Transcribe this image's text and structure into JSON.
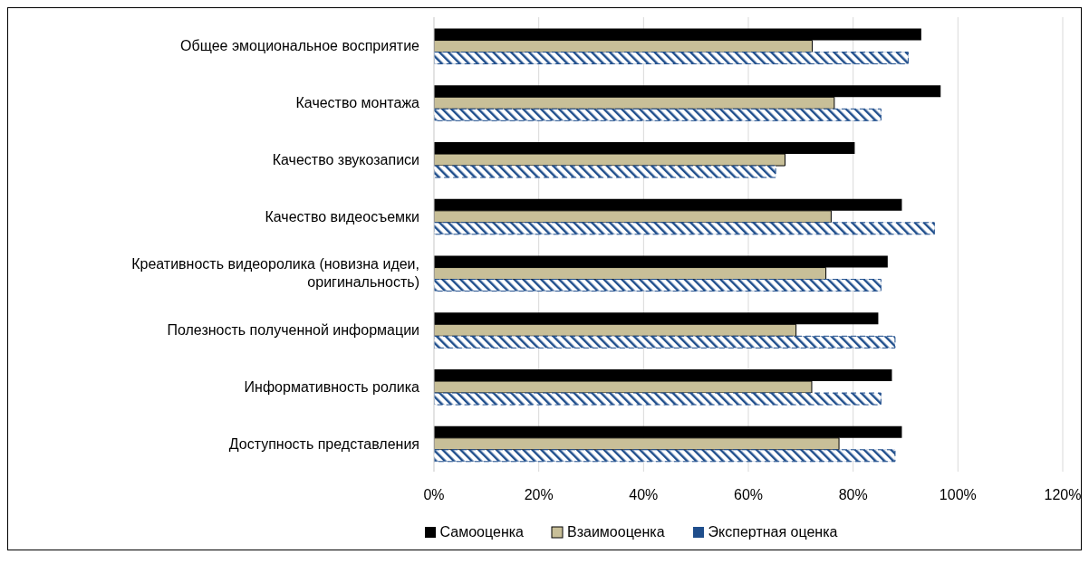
{
  "chart_data": {
    "type": "bar",
    "orientation": "horizontal",
    "categories": [
      "Общее эмоциональное восприятие",
      "Качество монтажа",
      "Качество звукозаписи",
      "Качество видеосъемки",
      "Креативность видеоролика (новизна идеи, оригинальность)",
      "Полезность полученной информации",
      "Информативность ролика",
      "Доступность представления"
    ],
    "series": [
      {
        "name": "Самооценка",
        "color": "#000000",
        "values": [
          93,
          96.7,
          80.3,
          89.3,
          86.6,
          84.8,
          87.4,
          89.3
        ]
      },
      {
        "name": "Взаимооценка",
        "color": "#c8bf98",
        "values": [
          72.2,
          76.4,
          67,
          75.8,
          74.8,
          69.1,
          72.1,
          77.3
        ]
      },
      {
        "name": "Экспертная оценка",
        "color": "#1f4e8c",
        "values": [
          90.5,
          85.3,
          65.2,
          95.5,
          85.3,
          88,
          85.3,
          88
        ]
      }
    ],
    "xlim": [
      0,
      120
    ],
    "xticks": [
      {
        "value": 0,
        "label": "0%"
      },
      {
        "value": 20,
        "label": "20%"
      },
      {
        "value": 40,
        "label": "40%"
      },
      {
        "value": 60,
        "label": "60%"
      },
      {
        "value": 80,
        "label": "80%"
      },
      {
        "value": 100,
        "label": "100%"
      },
      {
        "value": 120,
        "label": "120%"
      }
    ],
    "grid": "x",
    "legend": "bottom"
  }
}
